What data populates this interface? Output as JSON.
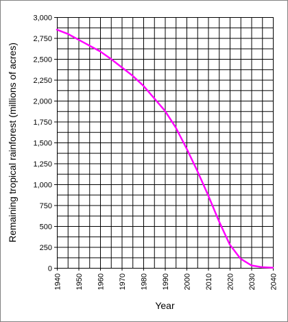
{
  "chart_data": {
    "type": "line",
    "title": "",
    "xlabel": "Year",
    "ylabel": "Remaining tropical rainforest (millions of acres)",
    "xlim": [
      1940,
      2040
    ],
    "ylim": [
      0,
      3000
    ],
    "x_ticks": [
      1940,
      1950,
      1960,
      1970,
      1980,
      1990,
      2000,
      2010,
      2020,
      2030,
      2040
    ],
    "x_tick_labels": [
      "1940",
      "1950",
      "1960",
      "1970",
      "1980",
      "1990",
      "2000",
      "2010",
      "2020",
      "2030",
      "2040"
    ],
    "y_ticks": [
      0,
      250,
      500,
      750,
      1000,
      1250,
      1500,
      1750,
      2000,
      2250,
      2500,
      2750,
      3000
    ],
    "y_tick_labels": [
      "0",
      "250",
      "500",
      "750",
      "1,000",
      "1,250",
      "1,500",
      "1,750",
      "2,000",
      "2,250",
      "2,500",
      "2,750",
      "3,000"
    ],
    "grid": true,
    "legend": "none",
    "series": [
      {
        "color": "#ff00ff",
        "x": [
          1940,
          1945,
          1950,
          1955,
          1960,
          1965,
          1970,
          1975,
          1980,
          1985,
          1990,
          1995,
          2000,
          2005,
          2010,
          2015,
          2020,
          2025,
          2030,
          2035,
          2040
        ],
        "y": [
          2850,
          2800,
          2730,
          2660,
          2590,
          2500,
          2400,
          2300,
          2180,
          2030,
          1880,
          1680,
          1430,
          1160,
          870,
          560,
          280,
          110,
          30,
          8,
          2
        ]
      }
    ]
  }
}
